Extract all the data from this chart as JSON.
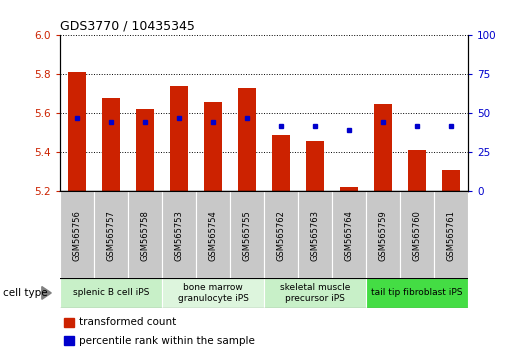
{
  "title": "GDS3770 / 10435345",
  "samples": [
    "GSM565756",
    "GSM565757",
    "GSM565758",
    "GSM565753",
    "GSM565754",
    "GSM565755",
    "GSM565762",
    "GSM565763",
    "GSM565764",
    "GSM565759",
    "GSM565760",
    "GSM565761"
  ],
  "bar_tops": [
    5.81,
    5.68,
    5.62,
    5.74,
    5.66,
    5.73,
    5.49,
    5.46,
    5.22,
    5.65,
    5.41,
    5.31
  ],
  "bar_base": 5.2,
  "blue_dots_y_left": [
    5.575,
    5.555,
    5.555,
    5.575,
    5.555,
    5.575,
    5.535,
    5.535,
    5.515,
    5.555,
    5.535,
    5.535
  ],
  "cell_types": [
    {
      "label": "splenic B cell iPS",
      "start": 0,
      "end": 3,
      "color": "#c8f0c8"
    },
    {
      "label": "bone marrow\ngranulocyte iPS",
      "start": 3,
      "end": 6,
      "color": "#ddf5dd"
    },
    {
      "label": "skeletal muscle\nprecursor iPS",
      "start": 6,
      "end": 9,
      "color": "#c8f0c8"
    },
    {
      "label": "tail tip fibroblast iPS",
      "start": 9,
      "end": 12,
      "color": "#44dd44"
    }
  ],
  "ylim_left": [
    5.2,
    6.0
  ],
  "ylim_right": [
    0,
    100
  ],
  "yticks_left": [
    5.2,
    5.4,
    5.6,
    5.8,
    6.0
  ],
  "yticks_right": [
    0,
    25,
    50,
    75,
    100
  ],
  "bar_color": "#cc2200",
  "dot_color": "#0000cc",
  "bar_width": 0.55,
  "cell_type_label": "cell type",
  "background_color": "#ffffff",
  "tick_color_left": "#cc2200",
  "tick_color_right": "#0000cc",
  "gray_box_color": "#c8c8c8",
  "legend_items": [
    {
      "label": "transformed count",
      "color": "#cc2200"
    },
    {
      "label": "percentile rank within the sample",
      "color": "#0000cc"
    }
  ]
}
